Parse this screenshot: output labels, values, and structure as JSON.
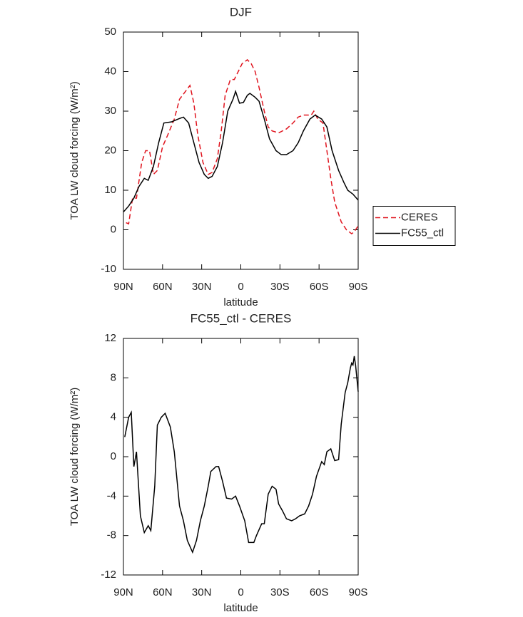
{
  "chart_data": [
    {
      "type": "line",
      "title": "DJF",
      "x_label": "latitude",
      "y_label": "TOA LW cloud forcing (W/m²)",
      "xlim": [
        90,
        -90
      ],
      "xticks": [
        {
          "value": 90,
          "label": "90N"
        },
        {
          "value": 60,
          "label": "60N"
        },
        {
          "value": 30,
          "label": "30N"
        },
        0,
        {
          "value": -30,
          "label": "30S"
        },
        {
          "value": -60,
          "label": "60S"
        },
        {
          "value": -90,
          "label": "90S"
        }
      ],
      "ylim": [
        -10,
        50
      ],
      "yticks": [
        -10,
        0,
        10,
        20,
        30,
        40,
        50
      ],
      "legend": "right",
      "series": [
        {
          "name": "CERES",
          "color": "#e0141e",
          "line_style": "dashed",
          "x": [
            88,
            86,
            83,
            80,
            76,
            73,
            70,
            67,
            64,
            60,
            56,
            51,
            47,
            39,
            36,
            33,
            29,
            25,
            22,
            18,
            15,
            12,
            8,
            5,
            2,
            -1,
            -5,
            -8,
            -11,
            -14,
            -18,
            -21,
            -24,
            -29,
            -32,
            -35,
            -40,
            -44,
            -48,
            -54,
            -56,
            -59,
            -63,
            -66,
            -69,
            -72,
            -77,
            -81,
            -85,
            -87,
            -90
          ],
          "values": [
            1.8,
            1.5,
            8,
            8,
            17,
            20,
            20,
            14,
            15,
            21,
            24,
            28,
            33,
            36.5,
            32,
            24,
            17,
            14,
            14.5,
            18,
            25,
            34,
            38,
            38,
            40,
            42,
            43,
            42,
            40,
            36,
            30,
            26,
            25,
            24.5,
            25,
            25.5,
            27,
            28.5,
            29,
            29,
            30,
            28,
            27,
            20,
            13,
            7,
            2,
            0,
            -1,
            -0.5,
            1
          ]
        },
        {
          "name": "FC55_ctl",
          "color": "#000000",
          "line_style": "solid",
          "x": [
            90,
            86,
            82,
            78,
            74,
            71,
            67,
            63,
            59,
            53,
            48,
            44,
            40,
            36,
            32,
            28,
            25,
            22,
            18,
            14,
            10,
            6,
            4,
            1,
            -2,
            -5,
            -7,
            -11,
            -14,
            -18,
            -22,
            -27,
            -31,
            -35,
            -40,
            -44,
            -48,
            -53,
            -57,
            -62,
            -66,
            -70,
            -75,
            -79,
            -82,
            -86,
            -90
          ],
          "values": [
            4.5,
            6,
            8,
            11,
            13,
            12.5,
            16,
            22,
            27,
            27.3,
            28,
            28.5,
            27,
            22,
            17,
            14,
            13,
            13.5,
            16,
            22,
            30,
            33,
            35,
            32,
            32.2,
            34,
            34.5,
            33.5,
            32.5,
            28,
            23,
            20,
            19,
            19,
            20,
            22,
            25,
            28,
            29,
            28,
            26,
            20,
            15,
            12,
            10,
            9,
            7.5
          ]
        }
      ]
    },
    {
      "type": "line",
      "title": "FC55_ctl - CERES",
      "x_label": "latitude",
      "y_label": "TOA LW cloud forcing (W/m²)",
      "xlim": [
        90,
        -90
      ],
      "xticks": [
        {
          "value": 90,
          "label": "90N"
        },
        {
          "value": 60,
          "label": "60N"
        },
        {
          "value": 30,
          "label": "30N"
        },
        0,
        {
          "value": -30,
          "label": "30S"
        },
        {
          "value": -60,
          "label": "60S"
        },
        {
          "value": -90,
          "label": "90S"
        }
      ],
      "ylim": [
        -12,
        12
      ],
      "yticks": [
        -12,
        -8,
        -4,
        0,
        4,
        8,
        12
      ],
      "color": "#000000",
      "x": [
        89,
        86,
        84,
        82,
        80,
        77,
        74,
        71,
        69,
        66,
        64,
        61,
        58,
        54,
        51,
        47,
        44,
        41,
        37,
        34,
        31,
        28,
        25,
        23,
        19,
        17,
        14,
        11,
        7,
        4,
        1,
        -3,
        -6,
        -10,
        -12,
        -16,
        -18,
        -21,
        -24,
        -27,
        -29,
        -32,
        -35,
        -39,
        -42,
        -45,
        -49,
        -52,
        -55,
        -58,
        -62,
        -64,
        -66,
        -69,
        -72,
        -75,
        -77,
        -80,
        -82,
        -84,
        -85,
        -86,
        -87,
        -88,
        -90
      ],
      "values": [
        2,
        4,
        4.5,
        -1,
        0.5,
        -6,
        -7.7,
        -7,
        -7.5,
        -3,
        3.2,
        4,
        4.4,
        3,
        0.5,
        -5,
        -6.5,
        -8.5,
        -9.7,
        -8.5,
        -6.5,
        -5,
        -3,
        -1.5,
        -1,
        -1,
        -2.5,
        -4.2,
        -4.3,
        -4,
        -5,
        -6.5,
        -8.7,
        -8.7,
        -8,
        -6.8,
        -6.8,
        -3.8,
        -3,
        -3.3,
        -4.8,
        -5.5,
        -6.3,
        -6.5,
        -6.3,
        -6,
        -5.8,
        -5,
        -3.8,
        -2,
        -0.5,
        -0.8,
        0.5,
        0.8,
        -0.4,
        -0.3,
        3.3,
        6.5,
        7.5,
        9,
        9.5,
        9.3,
        10.2,
        9.3,
        6.6
      ]
    }
  ]
}
